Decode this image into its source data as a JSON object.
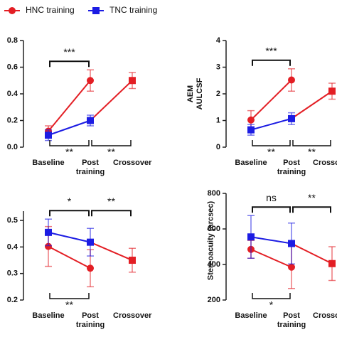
{
  "chart_data": [
    {
      "type": "line",
      "categories": [
        "Baseline",
        "Post training",
        "Crossover"
      ],
      "series": [
        {
          "name": "HNC training",
          "color": "#e31e24",
          "marker": "circle",
          "values": [
            0.12,
            0.5,
            null
          ],
          "errors": [
            0.04,
            0.08,
            null
          ]
        },
        {
          "name": "TNC training",
          "color": "#1c1ce3",
          "marker": "square",
          "values": [
            0.09,
            0.2,
            0.5
          ],
          "errors": [
            0.04,
            0.04,
            0.06
          ],
          "point_colors": [
            "#1c1ce3",
            "#1c1ce3",
            "#e31e24"
          ]
        }
      ],
      "ylim": [
        0,
        0.8
      ],
      "yticks": [
        {
          "value": 0,
          "label": "0.0"
        },
        {
          "value": 0.2,
          "label": "0.2"
        },
        {
          "value": 0.4,
          "label": "0.4"
        },
        {
          "value": 0.6,
          "label": "0.6"
        },
        {
          "value": 0.8,
          "label": "0.8"
        }
      ],
      "annotations": [
        {
          "label": "***",
          "between": [
            0,
            1
          ],
          "side": "top"
        },
        {
          "label": "**",
          "between": [
            0,
            1
          ],
          "side": "bottom"
        },
        {
          "label": "**",
          "between": [
            1,
            2
          ],
          "side": "bottom"
        }
      ]
    },
    {
      "type": "line",
      "ylabel": "AEM AULCSF",
      "categories": [
        "Baseline",
        "Post training",
        "Crossover"
      ],
      "series": [
        {
          "color": "#e31e24",
          "marker": "circle",
          "values": [
            1.02,
            2.52,
            null
          ],
          "errors": [
            0.35,
            0.42,
            null
          ]
        },
        {
          "color": "#1c1ce3",
          "marker": "square",
          "values": [
            0.65,
            1.07,
            2.1
          ],
          "errors": [
            0.2,
            0.22,
            0.3
          ],
          "point_colors": [
            "#1c1ce3",
            "#1c1ce3",
            "#e31e24"
          ]
        }
      ],
      "ylim": [
        0,
        4
      ],
      "yticks": [
        0,
        1,
        2,
        3,
        4
      ],
      "annotations": [
        {
          "label": "***",
          "between": [
            0,
            1
          ],
          "side": "top"
        },
        {
          "label": "**",
          "between": [
            0,
            1
          ],
          "side": "bottom"
        },
        {
          "label": "**",
          "between": [
            1,
            2
          ],
          "side": "bottom"
        }
      ]
    },
    {
      "type": "line",
      "categories": [
        "Baseline",
        "Post training",
        "Crossover"
      ],
      "series": [
        {
          "color": "#e31e24",
          "marker": "circle",
          "values": [
            0.402,
            0.32,
            null
          ],
          "errors": [
            0.075,
            0.07,
            null
          ]
        },
        {
          "color": "#1c1ce3",
          "marker": "square",
          "values": [
            0.455,
            0.418,
            0.35
          ],
          "errors": [
            0.05,
            0.052,
            0.045
          ],
          "point_colors": [
            "#1c1ce3",
            "#1c1ce3",
            "#e31e24"
          ]
        }
      ],
      "ylim": [
        0.2,
        0.535
      ],
      "yticks": [
        0.2,
        0.3,
        0.4,
        0.5
      ],
      "annotations": [
        {
          "label": "*",
          "between": [
            0,
            1
          ],
          "side": "top"
        },
        {
          "label": "**",
          "between": [
            1,
            2
          ],
          "side": "top"
        },
        {
          "label": "**",
          "between": [
            0,
            1
          ],
          "side": "bottom"
        }
      ]
    },
    {
      "type": "line",
      "ylabel": "Stereoacuity (arcsec)",
      "categories": [
        "Baseline",
        "Post training",
        "Crossover"
      ],
      "series": [
        {
          "color": "#e31e24",
          "marker": "circle",
          "values": [
            485,
            385,
            null
          ],
          "errors": [
            50,
            120,
            null
          ],
          "point_colors": null
        },
        {
          "color": "#1c1ce3",
          "marker": "square",
          "values": [
            555,
            518,
            405
          ],
          "errors": [
            120,
            115,
            95
          ],
          "point_colors": [
            "#1c1ce3",
            "#1c1ce3",
            "#e31e24"
          ]
        }
      ],
      "ylim": [
        200,
        800
      ],
      "yticks": [
        200,
        400,
        600,
        800
      ],
      "annotations": [
        {
          "label": "ns",
          "between": [
            0,
            1
          ],
          "side": "top"
        },
        {
          "label": "**",
          "between": [
            1,
            2
          ],
          "side": "top"
        },
        {
          "label": "*",
          "between": [
            0,
            1
          ],
          "side": "bottom"
        }
      ]
    }
  ]
}
